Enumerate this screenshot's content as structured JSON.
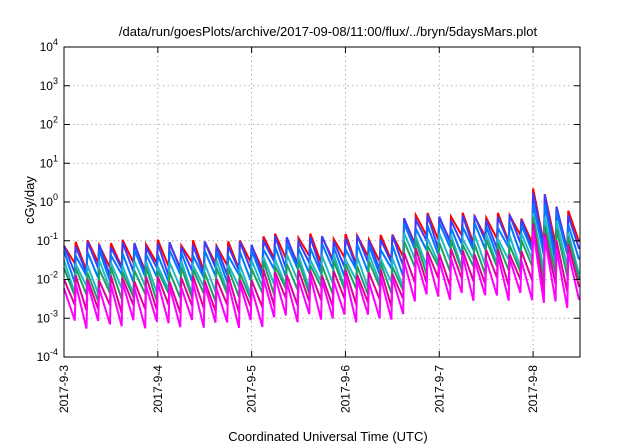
{
  "chart_data": {
    "type": "line",
    "title": "/data/run/goesPlots/archive/2017-09-08/11:00/flux/../bryn/5daysMars.plot",
    "xlabel": "Coordinated Universal Time (UTC)",
    "ylabel": "cGy/day",
    "yscale": "log",
    "ylim": [
      0.0001,
      10000
    ],
    "xlim": [
      "2017-09-03 00:00",
      "2017-09-08 12:00"
    ],
    "grid": true,
    "legend": "none",
    "x_ticks": [
      "2017-9-3",
      "2017-9-4",
      "2017-9-5",
      "2017-9-6",
      "2017-9-7",
      "2017-9-8"
    ],
    "y_ticks": [
      {
        "base": "10",
        "exp": "-4"
      },
      {
        "base": "10",
        "exp": "-3"
      },
      {
        "base": "10",
        "exp": "-2"
      },
      {
        "base": "10",
        "exp": "-1"
      },
      {
        "base": "10",
        "exp": "0"
      },
      {
        "base": "10",
        "exp": "1"
      },
      {
        "base": "10",
        "exp": "2"
      },
      {
        "base": "10",
        "exp": "3"
      },
      {
        "base": "10",
        "exp": "4"
      }
    ],
    "sawtooth_cycles_per_day": 8,
    "peak_level_segments": [
      {
        "start": "2017-09-03 00:00",
        "end": "2017-09-05 00:00",
        "peak": 0.09
      },
      {
        "start": "2017-09-05 00:00",
        "end": "2017-09-06 15:00",
        "peak": 0.13
      },
      {
        "start": "2017-09-06 15:00",
        "end": "2017-09-08 00:00",
        "peak": 0.45
      },
      {
        "start": "2017-09-08 00:00",
        "end": "2017-09-08 12:00",
        "peak": 0.3
      }
    ],
    "events": [
      {
        "time": "2017-09-08 01:00",
        "peak": 2.0,
        "series": "red"
      }
    ],
    "series": [
      {
        "color": "#ff0000",
        "peak_factor": 1.0,
        "min_factor": 0.25
      },
      {
        "color": "#3c3cff",
        "peak_factor": 0.9,
        "min_factor": 0.18
      },
      {
        "color": "#0078ff",
        "peak_factor": 0.55,
        "min_factor": 0.12
      },
      {
        "color": "#22b8c8",
        "peak_factor": 0.3,
        "min_factor": 0.06
      },
      {
        "color": "#20a060",
        "peak_factor": 0.2,
        "min_factor": 0.04
      },
      {
        "color": "#e0009a",
        "peak_factor": 0.12,
        "min_factor": 0.02
      },
      {
        "color": "#ff00ff",
        "peak_factor": 0.08,
        "min_factor": 0.008
      }
    ]
  }
}
